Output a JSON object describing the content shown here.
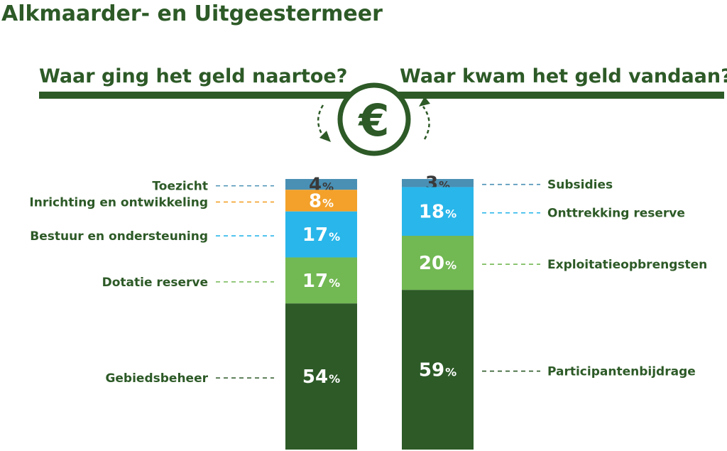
{
  "page_title": "Alkmaarder- en Uitgeestermeer",
  "icon": "euro-icon",
  "colors": {
    "dark_green": "#2d5a27",
    "light_green": "#72b853",
    "sky_blue": "#29b6ea",
    "orange": "#f3a12a",
    "steel_blue": "#4a90b4",
    "dark_text": "#3a3a3a",
    "white": "#ffffff"
  },
  "chart_data": [
    {
      "type": "bar",
      "subtype": "stacked-100",
      "title": "Waar ging het geld naartoe?",
      "unit": "%",
      "ylim": [
        0,
        100
      ],
      "label_side": "left",
      "segments": [
        {
          "name": "Toezicht",
          "value": 4,
          "color": "#4a90b4",
          "text_color": "#3a3a3a"
        },
        {
          "name": "Inrichting en ontwikkeling",
          "value": 8,
          "color": "#f3a12a",
          "text_color": "#ffffff"
        },
        {
          "name": "Bestuur en ondersteuning",
          "value": 17,
          "color": "#29b6ea",
          "text_color": "#ffffff"
        },
        {
          "name": "Dotatie reserve",
          "value": 17,
          "color": "#72b853",
          "text_color": "#ffffff"
        },
        {
          "name": "Gebiedsbeheer",
          "value": 54,
          "color": "#2d5a27",
          "text_color": "#ffffff"
        }
      ]
    },
    {
      "type": "bar",
      "subtype": "stacked-100",
      "title": "Waar kwam het geld vandaan?",
      "unit": "%",
      "ylim": [
        0,
        100
      ],
      "label_side": "right",
      "segments": [
        {
          "name": "Subsidies",
          "value": 3,
          "color": "#4a90b4",
          "text_color": "#3a3a3a"
        },
        {
          "name": "Onttrekking reserve",
          "value": 18,
          "color": "#29b6ea",
          "text_color": "#ffffff"
        },
        {
          "name": "Exploitatieopbrengsten",
          "value": 20,
          "color": "#72b853",
          "text_color": "#ffffff"
        },
        {
          "name": "Participantenbijdrage",
          "value": 59,
          "color": "#2d5a27",
          "text_color": "#ffffff"
        }
      ]
    }
  ]
}
